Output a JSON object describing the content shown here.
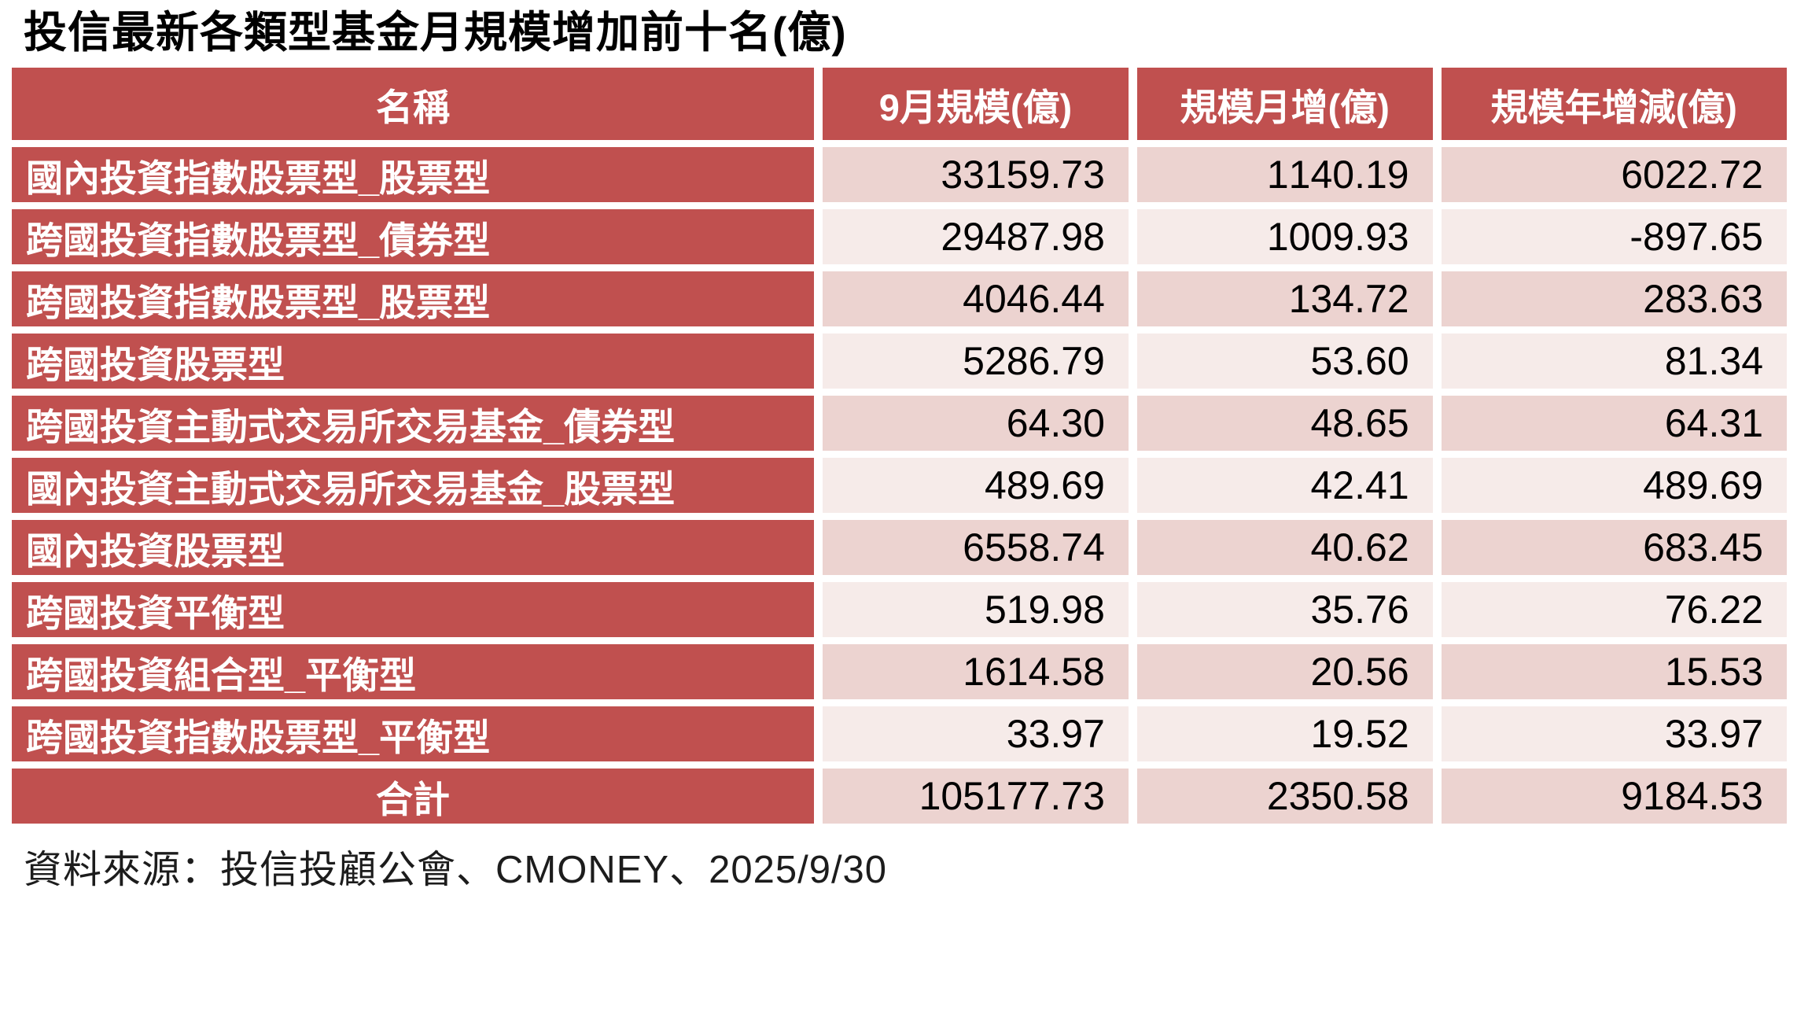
{
  "title": "投信最新各類型基金月規模增加前十名(億)",
  "source": "資料來源：投信投顧公會、CMONEY、2025/9/30",
  "colors": {
    "header_red": "#c0504f",
    "row_dark_pink": "#ecd3d0",
    "row_light_pink": "#f6ebe9",
    "total_pink": "#e8cdca",
    "header_text": "#ffffff",
    "number_text": "#000000"
  },
  "table": {
    "headers": [
      "名稱",
      "9月規模(億)",
      "規模月增(億)",
      "規模年增減(億)"
    ],
    "rows": [
      {
        "name": "國內投資指數股票型_股票型",
        "scale": "33159.73",
        "month": "1140.19",
        "year": "6022.72"
      },
      {
        "name": "跨國投資指數股票型_債券型",
        "scale": "29487.98",
        "month": "1009.93",
        "year": "-897.65"
      },
      {
        "name": "跨國投資指數股票型_股票型",
        "scale": "4046.44",
        "month": "134.72",
        "year": "283.63"
      },
      {
        "name": "跨國投資股票型",
        "scale": "5286.79",
        "month": "53.60",
        "year": "81.34"
      },
      {
        "name": "跨國投資主動式交易所交易基金_債券型",
        "scale": "64.30",
        "month": "48.65",
        "year": "64.31"
      },
      {
        "name": "國內投資主動式交易所交易基金_股票型",
        "scale": "489.69",
        "month": "42.41",
        "year": "489.69"
      },
      {
        "name": "國內投資股票型",
        "scale": "6558.74",
        "month": "40.62",
        "year": "683.45"
      },
      {
        "name": "跨國投資平衡型",
        "scale": "519.98",
        "month": "35.76",
        "year": "76.22"
      },
      {
        "name": "跨國投資組合型_平衡型",
        "scale": "1614.58",
        "month": "20.56",
        "year": "15.53"
      },
      {
        "name": "跨國投資指數股票型_平衡型",
        "scale": "33.97",
        "month": "19.52",
        "year": "33.97"
      }
    ],
    "total": {
      "name": "合計",
      "scale": "105177.73",
      "month": "2350.58",
      "year": "9184.53"
    }
  },
  "chart_data": {
    "type": "table",
    "title": "投信最新各類型基金月規模增加前十名(億)",
    "columns": [
      "名稱",
      "9月規模(億)",
      "規模月增(億)",
      "規模年增減(億)"
    ],
    "rows": [
      [
        "國內投資指數股票型_股票型",
        33159.73,
        1140.19,
        6022.72
      ],
      [
        "跨國投資指數股票型_債券型",
        29487.98,
        1009.93,
        -897.65
      ],
      [
        "跨國投資指數股票型_股票型",
        4046.44,
        134.72,
        283.63
      ],
      [
        "跨國投資股票型",
        5286.79,
        53.6,
        81.34
      ],
      [
        "跨國投資主動式交易所交易基金_債券型",
        64.3,
        48.65,
        64.31
      ],
      [
        "國內投資主動式交易所交易基金_股票型",
        489.69,
        42.41,
        489.69
      ],
      [
        "國內投資股票型",
        6558.74,
        40.62,
        683.45
      ],
      [
        "跨國投資平衡型",
        519.98,
        35.76,
        76.22
      ],
      [
        "跨國投資組合型_平衡型",
        1614.58,
        20.56,
        15.53
      ],
      [
        "跨國投資指數股票型_平衡型",
        33.97,
        19.52,
        33.97
      ]
    ],
    "total_row": [
      "合計",
      105177.73,
      2350.58,
      9184.53
    ],
    "source": "資料來源：投信投顧公會、CMONEY、2025/9/30"
  }
}
